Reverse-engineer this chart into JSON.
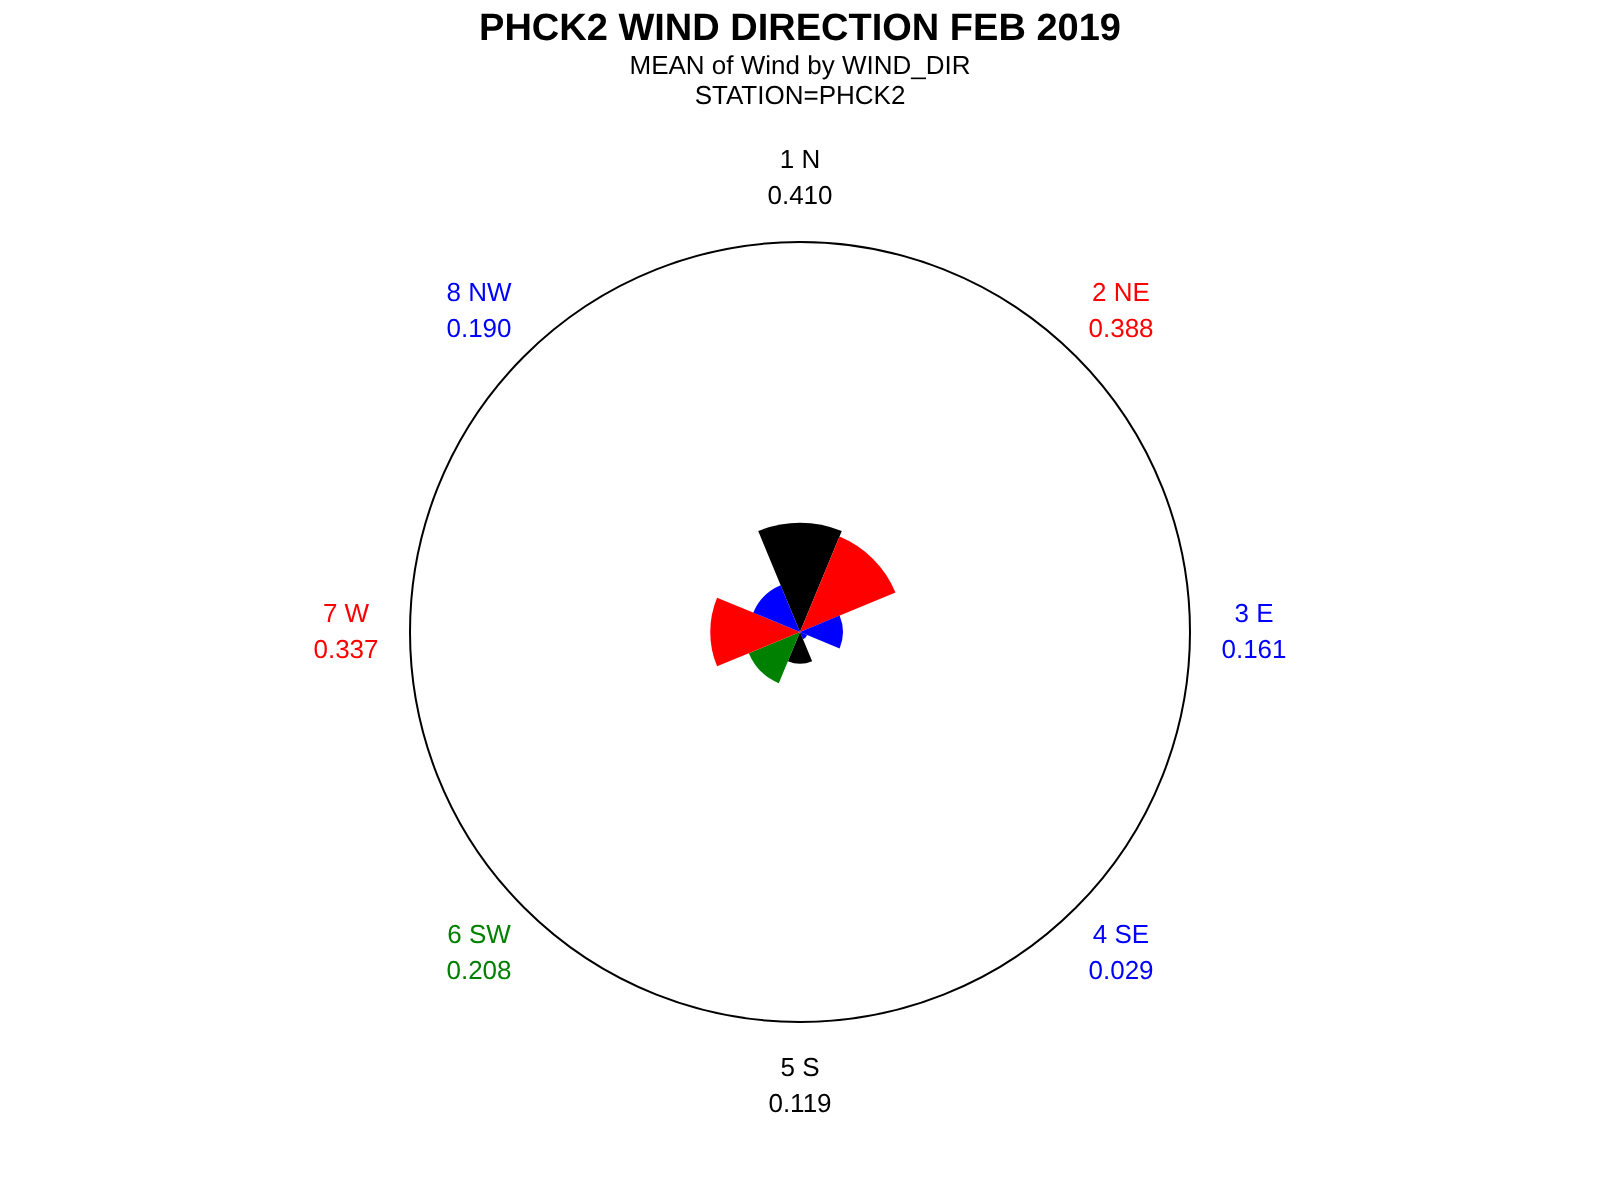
{
  "chart_data": {
    "type": "other",
    "title": "PHCK2 WIND DIRECTION FEB 2019",
    "subtitle": "MEAN of Wind by WIND_DIR",
    "annotations": [
      "STATION=PHCK2"
    ],
    "categories": [
      "1 N",
      "2 NE",
      "3 E",
      "4 SE",
      "5 S",
      "6 SW",
      "7 W",
      "8 NW"
    ],
    "values": [
      0.41,
      0.388,
      0.161,
      0.029,
      0.119,
      0.208,
      0.337,
      0.19
    ],
    "colors": [
      "#000000",
      "#ff0000",
      "#0000ff",
      "#0000ff",
      "#000000",
      "#008000",
      "#ff0000",
      "#0000ff"
    ],
    "value_labels": [
      "0.410",
      "0.388",
      "0.161",
      "0.029",
      "0.119",
      "0.208",
      "0.337",
      "0.190"
    ]
  }
}
